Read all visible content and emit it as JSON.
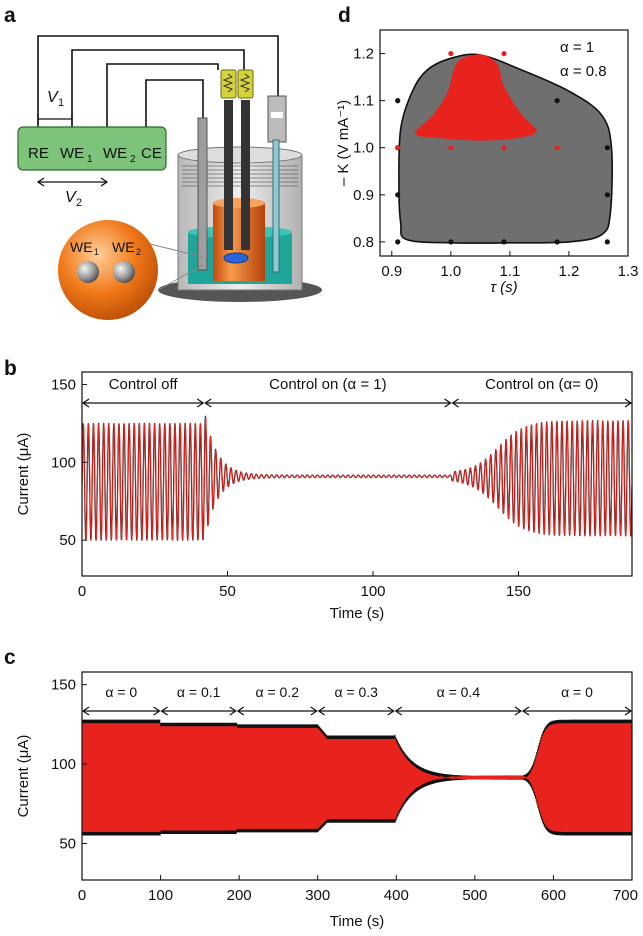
{
  "panel_labels": {
    "a": "a",
    "b": "b",
    "c": "c",
    "d": "d"
  },
  "schematic": {
    "box_labels": [
      "RE",
      "WE",
      "WE",
      "CE"
    ],
    "subscripts": [
      "1",
      "2"
    ],
    "v1": "V",
    "v1_sub": "1",
    "v2": "V",
    "v2_sub": "2",
    "inset_labels": [
      "WE",
      "WE"
    ],
    "colors": {
      "box": "#7dc47a",
      "liquid": "#1fa59a",
      "electrode": "#e0621a",
      "resistor": "#d6d23a",
      "sphere": "#f07818"
    }
  },
  "chart_data": [
    {
      "id": "d",
      "type": "scatter",
      "xlabel": "τ (s)",
      "ylabel": "– K (V mA⁻¹)",
      "xlim": [
        0.88,
        1.3
      ],
      "ylim": [
        0.77,
        1.25
      ],
      "xticks": [
        "0.9",
        "1.0",
        "1.1",
        "1.2",
        "1.3"
      ],
      "xtick_values": [
        0.9,
        1.0,
        1.1,
        1.2,
        1.3
      ],
      "yticks": [
        "0.8",
        "0.9",
        "1.0",
        "1.1",
        "1.2"
      ],
      "ytick_values": [
        0.8,
        0.9,
        1.0,
        1.1,
        1.2
      ],
      "legend": [
        {
          "label": "α = 1",
          "color": "#111111"
        },
        {
          "label": "α = 0.8",
          "color": "#e8221c"
        }
      ],
      "series": [
        {
          "name": "α = 1",
          "color": "#111111",
          "points": [
            [
              0.91,
              0.8
            ],
            [
              1.0,
              0.8
            ],
            [
              1.09,
              0.8
            ],
            [
              1.18,
              0.8
            ],
            [
              1.265,
              0.8
            ],
            [
              0.91,
              0.9
            ],
            [
              1.265,
              0.9
            ],
            [
              0.91,
              1.0
            ],
            [
              1.265,
              1.0
            ],
            [
              0.91,
              1.1
            ],
            [
              1.18,
              1.1
            ]
          ]
        },
        {
          "name": "α = 0.8",
          "color": "#e8221c",
          "points": [
            [
              1.0,
              1.2
            ],
            [
              1.09,
              1.2
            ],
            [
              1.0,
              1.1
            ],
            [
              1.09,
              1.1
            ],
            [
              0.91,
              1.0
            ],
            [
              1.0,
              1.0
            ],
            [
              1.09,
              1.0
            ],
            [
              1.18,
              1.0
            ]
          ]
        }
      ],
      "regions": [
        {
          "name": "α = 1",
          "fill": "#6f6f6f",
          "boundary": [
            [
              0.925,
              0.805
            ],
            [
              1.0,
              0.798
            ],
            [
              1.1,
              0.798
            ],
            [
              1.2,
              0.8
            ],
            [
              1.255,
              0.815
            ],
            [
              1.27,
              0.86
            ],
            [
              1.272,
              1.0
            ],
            [
              1.255,
              1.07
            ],
            [
              1.2,
              1.12
            ],
            [
              1.12,
              1.165
            ],
            [
              1.05,
              1.197
            ],
            [
              1.0,
              1.19
            ],
            [
              0.96,
              1.165
            ],
            [
              0.935,
              1.12
            ],
            [
              0.915,
              1.04
            ],
            [
              0.912,
              0.92
            ],
            [
              0.915,
              0.84
            ]
          ]
        },
        {
          "name": "α = 0.8",
          "fill": "#e8221c",
          "boundary": [
            [
              0.94,
              1.03
            ],
            [
              0.985,
              1.02
            ],
            [
              1.05,
              1.015
            ],
            [
              1.11,
              1.02
            ],
            [
              1.145,
              1.035
            ],
            [
              1.12,
              1.07
            ],
            [
              1.09,
              1.13
            ],
            [
              1.08,
              1.175
            ],
            [
              1.06,
              1.195
            ],
            [
              1.04,
              1.197
            ],
            [
              1.01,
              1.18
            ],
            [
              0.995,
              1.12
            ],
            [
              0.97,
              1.07
            ]
          ]
        }
      ]
    },
    {
      "id": "b",
      "type": "line",
      "xlabel": "Time (s)",
      "ylabel": "Current (μA)",
      "xlim": [
        0,
        189
      ],
      "ylim": [
        27,
        158
      ],
      "xticks": [
        "0",
        "50",
        "100",
        "150"
      ],
      "xtick_values": [
        0,
        50,
        100,
        150
      ],
      "yticks": [
        "50",
        "100",
        "150"
      ],
      "ytick_values": [
        50,
        100,
        150
      ],
      "period_s": 1.75,
      "segments": [
        {
          "label": "Control off",
          "x_start": 0,
          "x_end": 42,
          "min_current": 50,
          "max_current": 125
        },
        {
          "label": "Control on (α = 1)",
          "x_start": 42,
          "x_end": 127,
          "steady_current": 91,
          "min_current": 43,
          "max_current": 123
        },
        {
          "label": "Control on (α= 0)",
          "x_start": 127,
          "x_end": 189,
          "min_current": 52,
          "max_current": 126
        }
      ],
      "series_colors": [
        "#111111",
        "#e8221c"
      ]
    },
    {
      "id": "c",
      "type": "line",
      "xlabel": "Time (s)",
      "ylabel": "Current (μA)",
      "xlim": [
        0,
        700
      ],
      "ylim": [
        27,
        158
      ],
      "xticks": [
        "0",
        "100",
        "200",
        "300",
        "400",
        "500",
        "600",
        "700"
      ],
      "xtick_values": [
        0,
        100,
        200,
        300,
        400,
        500,
        600,
        700
      ],
      "yticks": [
        "50",
        "100",
        "150"
      ],
      "ytick_values": [
        50,
        100,
        150
      ],
      "segments": [
        {
          "label": "α = 0",
          "x_start": 0,
          "x_end": 100,
          "min_current": 55,
          "max_current": 128
        },
        {
          "label": "α = 0.1",
          "x_start": 100,
          "x_end": 197,
          "min_current": 56,
          "max_current": 126
        },
        {
          "label": "α = 0.2",
          "x_start": 197,
          "x_end": 300,
          "min_current": 57,
          "max_current": 125
        },
        {
          "label": "α = 0.3",
          "x_start": 300,
          "x_end": 398,
          "min_current": 63,
          "max_current": 118
        },
        {
          "label": "α = 0.4",
          "x_start": 398,
          "x_end": 560,
          "min_current": 90,
          "max_current": 93
        },
        {
          "label": "α = 0",
          "x_start": 560,
          "x_end": 700,
          "min_current": 55,
          "max_current": 128
        }
      ],
      "series_colors": [
        "#111111",
        "#e8221c"
      ]
    }
  ]
}
